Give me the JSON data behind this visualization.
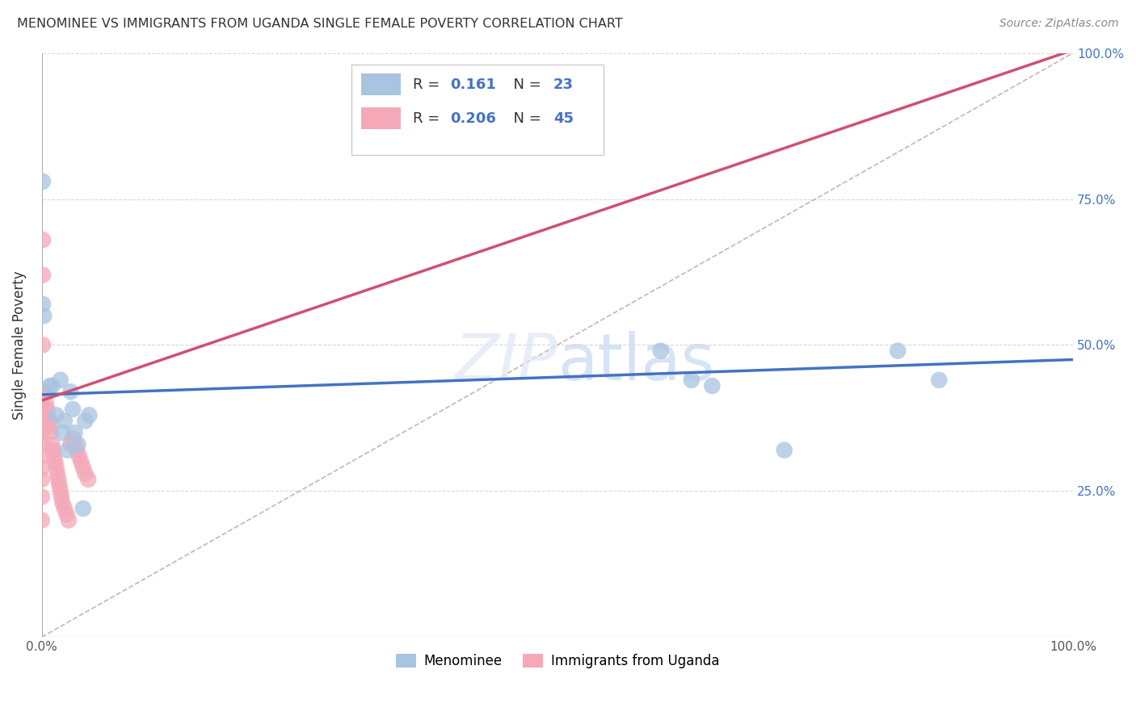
{
  "title": "MENOMINEE VS IMMIGRANTS FROM UGANDA SINGLE FEMALE POVERTY CORRELATION CHART",
  "source": "Source: ZipAtlas.com",
  "ylabel": "Single Female Poverty",
  "menominee_R": "0.161",
  "menominee_N": "23",
  "uganda_R": "0.206",
  "uganda_N": "45",
  "menominee_color": "#a8c4e0",
  "uganda_color": "#f4a8b8",
  "menominee_line_color": "#4472c4",
  "uganda_line_color": "#d05070",
  "diagonal_color": "#d0b0b0",
  "menominee_points_x": [
    0.001,
    0.001,
    0.002,
    0.008,
    0.01,
    0.014,
    0.018,
    0.02,
    0.022,
    0.025,
    0.028,
    0.03,
    0.032,
    0.035,
    0.04,
    0.042,
    0.046,
    0.6,
    0.63,
    0.65,
    0.72,
    0.83,
    0.87
  ],
  "menominee_points_y": [
    0.78,
    0.57,
    0.55,
    0.43,
    0.43,
    0.38,
    0.44,
    0.35,
    0.37,
    0.32,
    0.42,
    0.39,
    0.35,
    0.33,
    0.22,
    0.37,
    0.38,
    0.49,
    0.44,
    0.43,
    0.32,
    0.49,
    0.44
  ],
  "uganda_points_x": [
    0.0,
    0.0,
    0.0,
    0.0,
    0.0,
    0.0,
    0.0,
    0.0,
    0.0,
    0.0,
    0.0,
    0.001,
    0.001,
    0.001,
    0.002,
    0.003,
    0.004,
    0.005,
    0.006,
    0.007,
    0.008,
    0.009,
    0.01,
    0.011,
    0.012,
    0.013,
    0.014,
    0.015,
    0.016,
    0.017,
    0.018,
    0.019,
    0.02,
    0.022,
    0.024,
    0.026,
    0.028,
    0.03,
    0.032,
    0.034,
    0.036,
    0.038,
    0.04,
    0.042,
    0.045
  ],
  "uganda_points_y": [
    0.42,
    0.4,
    0.39,
    0.37,
    0.35,
    0.33,
    0.31,
    0.29,
    0.27,
    0.24,
    0.2,
    0.68,
    0.62,
    0.5,
    0.42,
    0.42,
    0.4,
    0.39,
    0.38,
    0.37,
    0.36,
    0.35,
    0.33,
    0.32,
    0.31,
    0.3,
    0.29,
    0.28,
    0.27,
    0.26,
    0.25,
    0.24,
    0.23,
    0.22,
    0.21,
    0.2,
    0.33,
    0.34,
    0.33,
    0.32,
    0.31,
    0.3,
    0.29,
    0.28,
    0.27
  ],
  "xlim": [
    0.0,
    1.0
  ],
  "ylim": [
    0.0,
    1.0
  ],
  "figsize": [
    14.06,
    8.92
  ],
  "dpi": 100,
  "menominee_line_x0": 0.0,
  "menominee_line_y0": 0.415,
  "menominee_line_x1": 1.0,
  "menominee_line_y1": 0.475,
  "uganda_line_x0": 0.0,
  "uganda_line_y0": 0.405,
  "uganda_line_x1": 0.05,
  "uganda_line_y1": 0.435
}
